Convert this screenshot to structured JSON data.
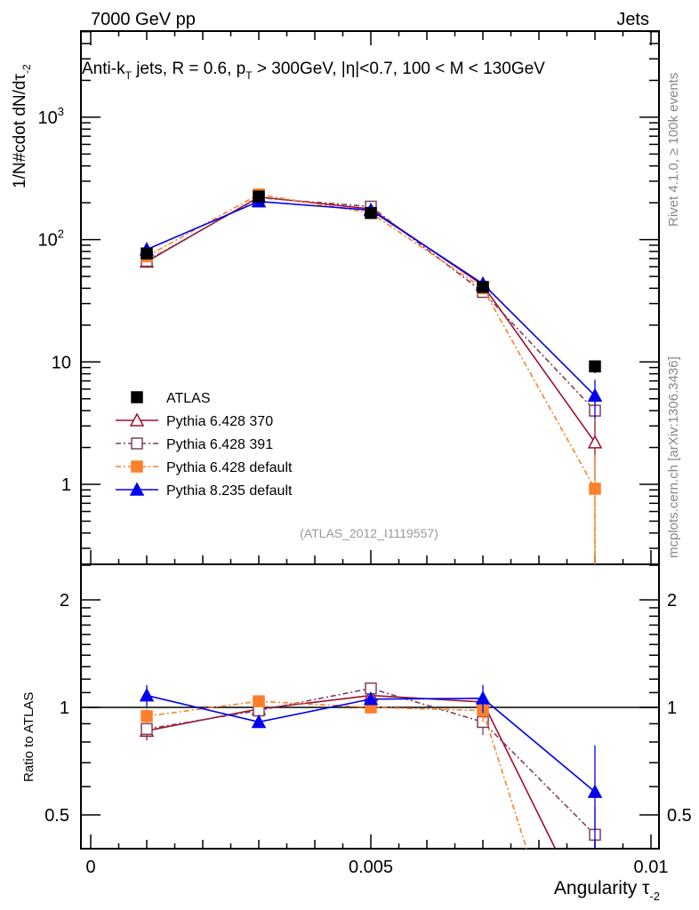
{
  "header": {
    "left": "7000 GeV pp",
    "right": "Jets"
  },
  "side_labels": {
    "rivet": "Rivet 4.1.0, ≥ 100k events",
    "mcplots": "mcplots.cern.ch [arXiv:1306.3436]"
  },
  "chart_data": {
    "type": "line",
    "title": {
      "p1": "Anti-k",
      "s1": "T",
      "p2": " jets, R = 0.6, p",
      "s2": "T",
      "p3": " > 300GeV, |η|<0.7, 100 < M < 130GeV"
    },
    "ylabel": {
      "main": "1/N#cdot dN/dτ",
      "sub": "-2"
    },
    "ratio_ylabel": "Ratio to ATLAS",
    "xlabel": {
      "main": "Angularity τ",
      "sub": "-2"
    },
    "analysis_tag": "(ATLAS_2012_I1119557)",
    "x": [
      0.001,
      0.003,
      0.005,
      0.007,
      0.009
    ],
    "xlim": [
      0,
      0.01
    ],
    "ylim": [
      0.22,
      5000
    ],
    "yscale": "log",
    "ratio_ylim": [
      0.4,
      2.5
    ],
    "x_tick_labels": [
      "0",
      "0.005",
      "0.01"
    ],
    "y_tick_labels": [
      "1",
      "10",
      "10",
      "10"
    ],
    "y_tick_exponents": [
      "",
      "",
      "2",
      "3"
    ],
    "ratio_tick_labels": [
      "0.5",
      "1",
      "2"
    ],
    "legend_position": "lower-left",
    "series": [
      {
        "name": "ATLAS",
        "color": "#000000",
        "marker": "square-filled",
        "dash": "",
        "values": [
          77,
          225,
          165,
          41,
          9.2
        ],
        "ratio": [
          1,
          1,
          1,
          1,
          1
        ],
        "rel_err": [
          0.06,
          0.03,
          0.03,
          0.08,
          0.12
        ]
      },
      {
        "name": "Pythia 6.428 370",
        "color": "#a01028",
        "marker": "triangle-open",
        "dash": "",
        "values": [
          66,
          223,
          178,
          42.4,
          2.2
        ],
        "ratio": [
          0.86,
          0.99,
          1.08,
          1.035,
          0.24
        ],
        "rel_err": [
          0.06,
          0.02,
          0.02,
          0.06,
          0.5
        ]
      },
      {
        "name": "Pythia 6.428 391",
        "color": "#7a4060",
        "marker": "square-open",
        "dash": "6,3,2,3",
        "values": [
          67,
          220,
          186,
          37.3,
          4.0
        ],
        "ratio": [
          0.87,
          0.98,
          1.13,
          0.91,
          0.44
        ],
        "rel_err": [
          0.06,
          0.02,
          0.03,
          0.08,
          0.2
        ]
      },
      {
        "name": "Pythia 6.428 default",
        "color": "#ff7f2a",
        "marker": "square-filled",
        "dash": "6,3,2,3",
        "values": [
          73,
          234,
          165,
          40,
          0.92
        ],
        "ratio": [
          0.945,
          1.04,
          1.0,
          0.98,
          0.1
        ],
        "rel_err": [
          0.05,
          0.03,
          0.04,
          0.07,
          0.9
        ]
      },
      {
        "name": "Pythia 8.235 default",
        "color": "#0000ee",
        "marker": "triangle-filled",
        "dash": "",
        "values": [
          83,
          205,
          174,
          43.5,
          5.3
        ],
        "ratio": [
          1.08,
          0.91,
          1.055,
          1.06,
          0.58
        ],
        "rel_err": [
          0.07,
          0.03,
          0.03,
          0.09,
          0.35
        ]
      }
    ]
  }
}
